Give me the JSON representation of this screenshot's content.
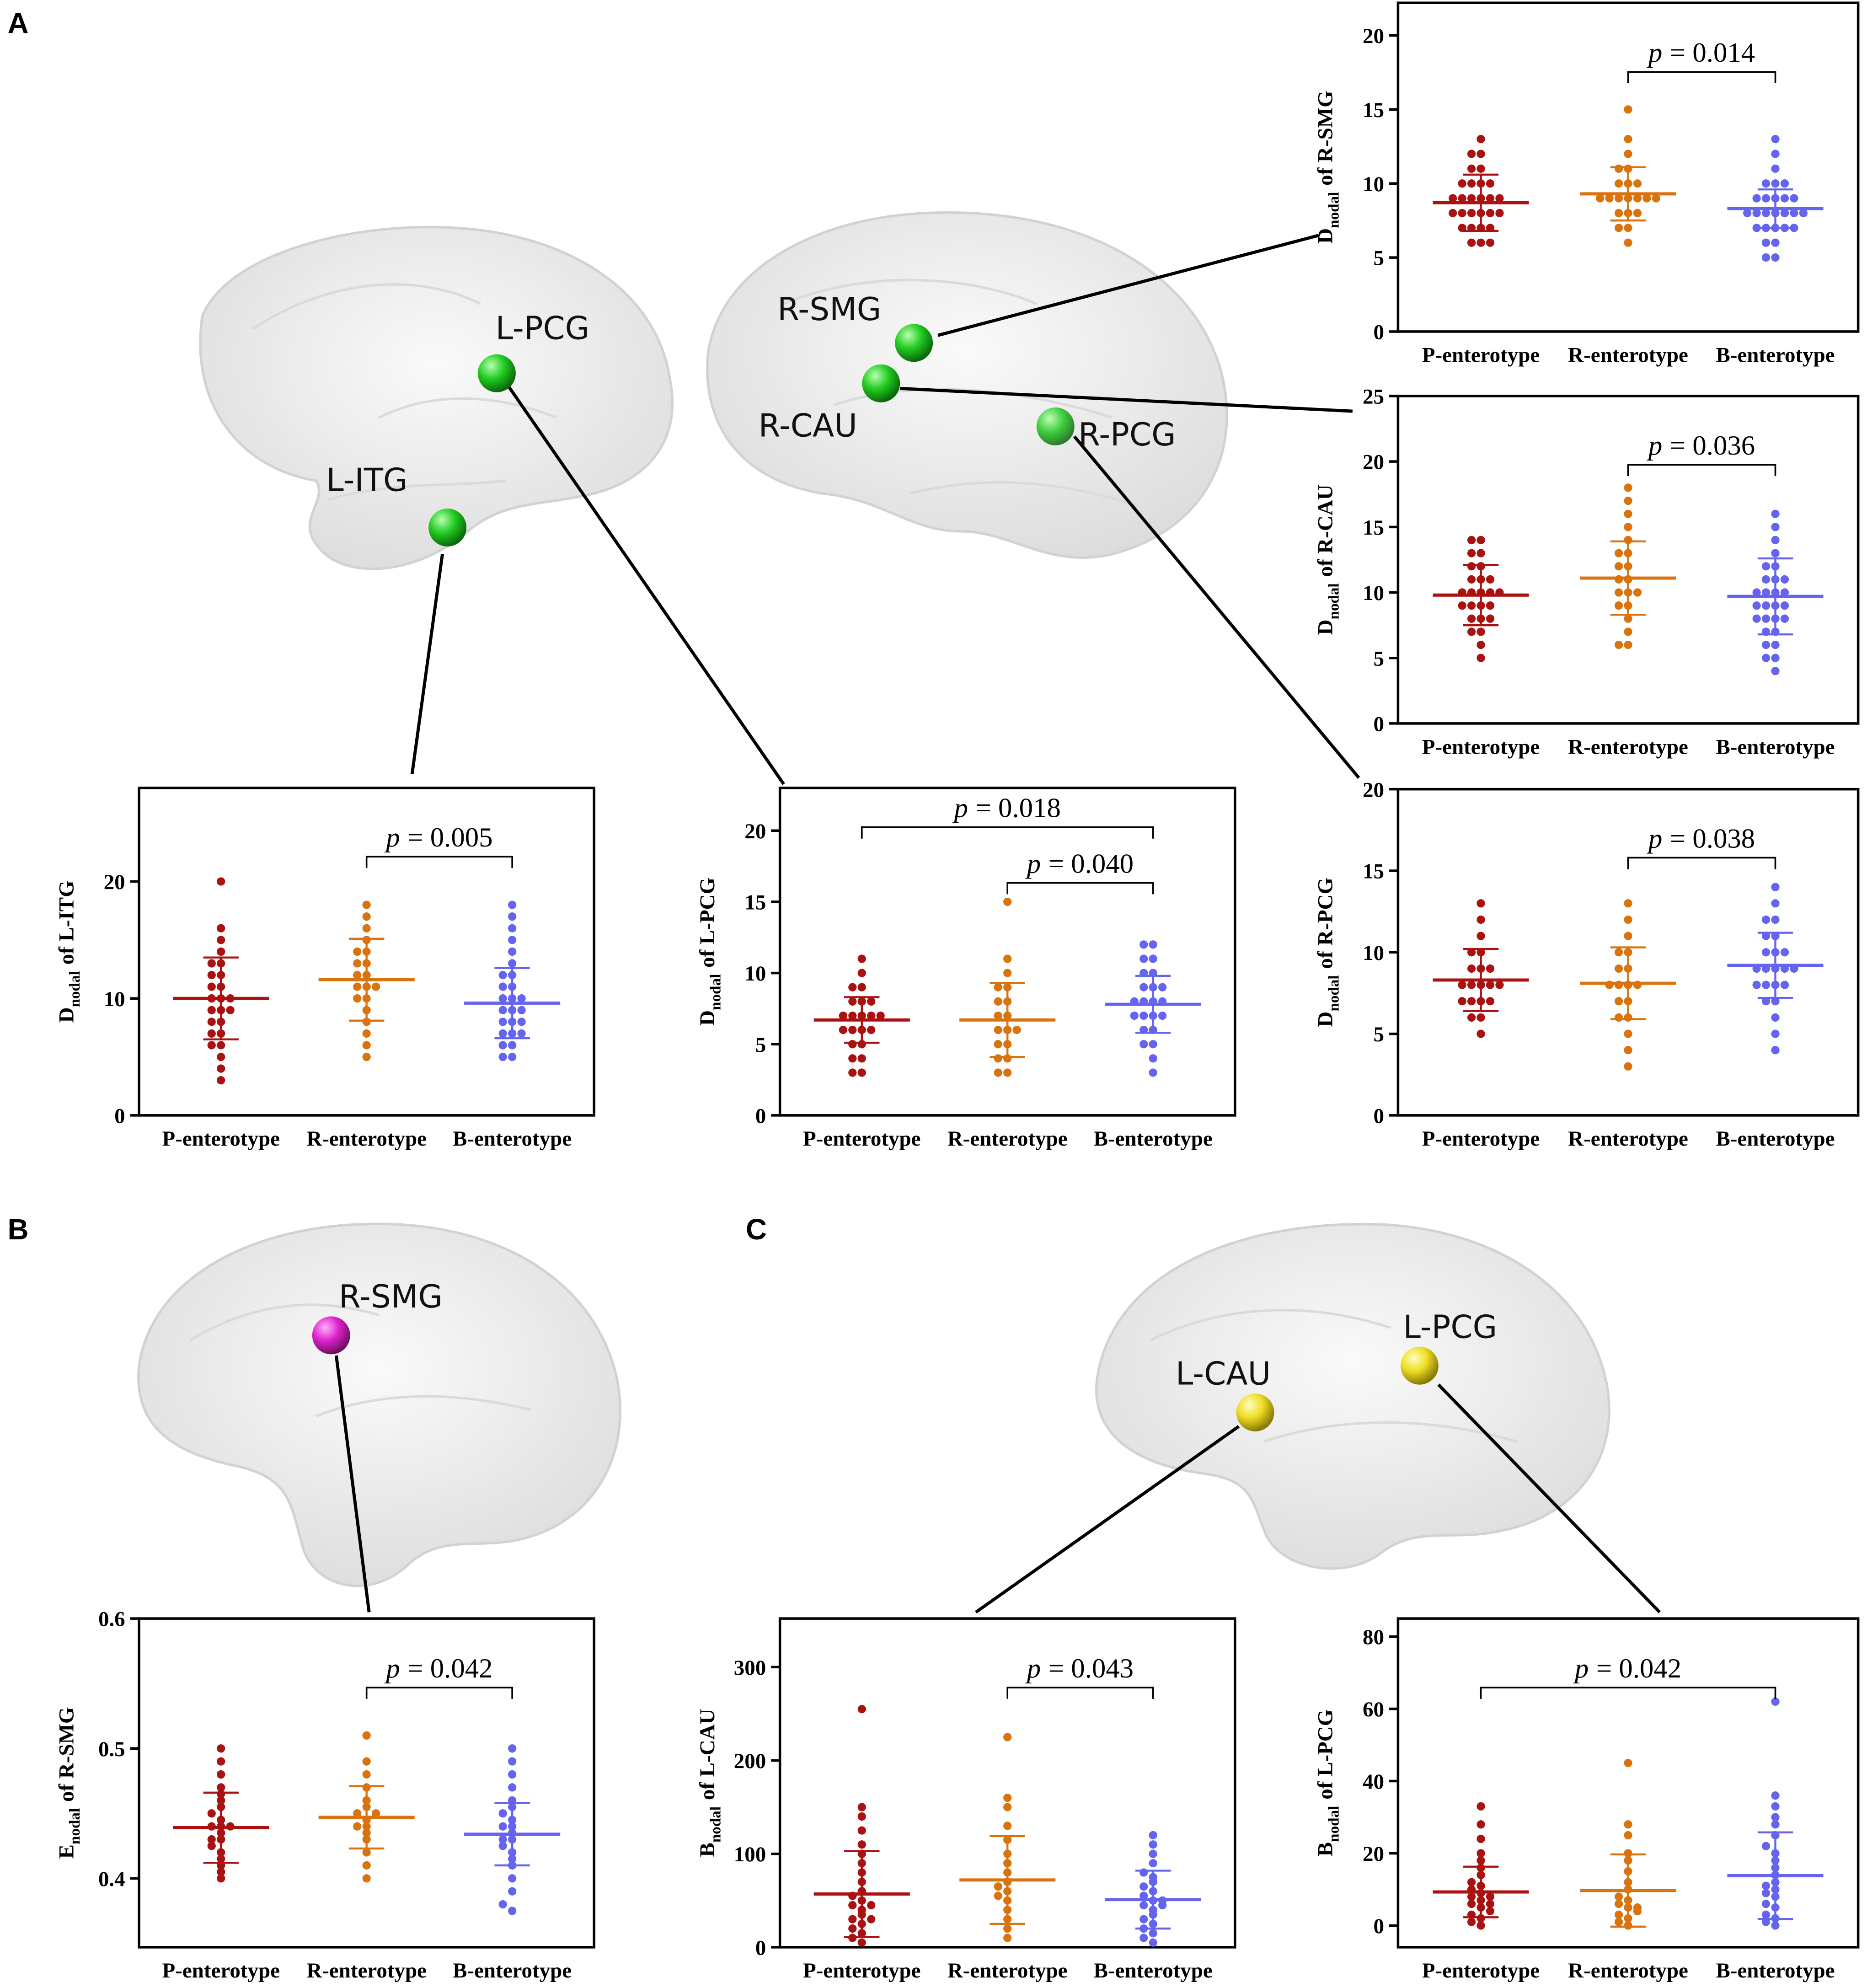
{
  "panel_labels": [
    "A",
    "B",
    "C"
  ],
  "brain_labels": {
    "a_left": [
      "L-PCG",
      "L-ITG"
    ],
    "a_right": [
      "R-SMG",
      "R-CAU",
      "R-PCG"
    ],
    "b": [
      "R-SMG"
    ],
    "c": [
      "L-CAU",
      "L-PCG"
    ]
  },
  "chart_data": [
    {
      "type": "dotplot",
      "ylabel": {
        "symbol": "D",
        "subscript": "nodal",
        "text": "of R-SMG"
      },
      "categories": [
        "P-enterotype",
        "R-enterotype",
        "B-enterotype"
      ],
      "ylim": [
        0,
        22.2
      ],
      "yticks": [
        0,
        5,
        10,
        15,
        20
      ],
      "groups": [
        {
          "color": "#aa1111",
          "mean": 8.7,
          "sd": 1.9,
          "values": [
            6,
            6,
            7,
            7,
            7,
            8,
            8,
            8,
            8,
            9,
            9,
            9,
            9,
            10,
            10,
            10,
            11,
            11,
            12,
            12,
            13,
            6,
            7,
            8,
            9,
            10,
            8,
            9
          ]
        },
        {
          "color": "#d9730d",
          "mean": 9.3,
          "sd": 1.8,
          "values": [
            6,
            7,
            7,
            8,
            8,
            9,
            9,
            9,
            9,
            9,
            9,
            10,
            10,
            10,
            11,
            11,
            12,
            13,
            15,
            8,
            9
          ]
        },
        {
          "color": "#6464ee",
          "mean": 8.3,
          "sd": 1.3,
          "values": [
            5,
            5,
            6,
            6,
            7,
            7,
            7,
            7,
            8,
            8,
            8,
            8,
            8,
            8,
            9,
            9,
            9,
            9,
            10,
            10,
            10,
            11,
            12,
            13,
            8,
            7,
            9
          ]
        }
      ],
      "brackets": [
        {
          "from": 1,
          "to": 2,
          "symbol": "p",
          "text": "= 0.014"
        }
      ]
    },
    {
      "type": "dotplot",
      "ylabel": {
        "symbol": "D",
        "subscript": "nodal",
        "text": "of R-CAU"
      },
      "categories": [
        "P-enterotype",
        "R-enterotype",
        "B-enterotype"
      ],
      "ylim": [
        0,
        25
      ],
      "yticks": [
        0,
        5,
        10,
        15,
        20,
        25
      ],
      "groups": [
        {
          "color": "#aa1111",
          "mean": 9.8,
          "sd": 2.3,
          "values": [
            5,
            6,
            7,
            7,
            8,
            8,
            9,
            9,
            9,
            10,
            10,
            10,
            10,
            11,
            11,
            11,
            12,
            12,
            13,
            13,
            14,
            14,
            8,
            9,
            10
          ]
        },
        {
          "color": "#d9730d",
          "mean": 11.1,
          "sd": 2.8,
          "values": [
            6,
            6,
            7,
            8,
            9,
            9,
            10,
            10,
            11,
            11,
            12,
            12,
            13,
            13,
            14,
            15,
            16,
            17,
            18,
            10
          ]
        },
        {
          "color": "#6464ee",
          "mean": 9.7,
          "sd": 2.9,
          "values": [
            4,
            5,
            5,
            6,
            6,
            7,
            7,
            8,
            8,
            8,
            9,
            9,
            9,
            10,
            10,
            10,
            10,
            11,
            11,
            11,
            12,
            12,
            13,
            14,
            15,
            16,
            9,
            8
          ]
        }
      ],
      "brackets": [
        {
          "from": 1,
          "to": 2,
          "symbol": "p",
          "text": "= 0.036"
        }
      ]
    },
    {
      "type": "dotplot",
      "ylabel": {
        "symbol": "D",
        "subscript": "nodal",
        "text": "of R-PCG"
      },
      "categories": [
        "P-enterotype",
        "R-enterotype",
        "B-enterotype"
      ],
      "ylim": [
        0,
        20
      ],
      "yticks": [
        0,
        5,
        10,
        15,
        20
      ],
      "groups": [
        {
          "color": "#aa1111",
          "mean": 8.3,
          "sd": 1.9,
          "values": [
            5,
            6,
            6,
            7,
            7,
            7,
            8,
            8,
            8,
            8,
            9,
            9,
            9,
            10,
            10,
            11,
            12,
            13,
            8,
            7
          ]
        },
        {
          "color": "#d9730d",
          "mean": 8.1,
          "sd": 2.2,
          "values": [
            3,
            4,
            5,
            6,
            6,
            7,
            7,
            8,
            8,
            8,
            9,
            9,
            10,
            10,
            11,
            12,
            13,
            8
          ]
        },
        {
          "color": "#6464ee",
          "mean": 9.2,
          "sd": 2.0,
          "values": [
            4,
            5,
            6,
            7,
            7,
            8,
            8,
            8,
            9,
            9,
            9,
            9,
            10,
            10,
            10,
            11,
            11,
            12,
            12,
            13,
            14,
            9,
            8
          ]
        }
      ],
      "brackets": [
        {
          "from": 1,
          "to": 2,
          "symbol": "p",
          "text": "= 0.038"
        }
      ]
    },
    {
      "type": "dotplot",
      "ylabel": {
        "symbol": "D",
        "subscript": "nodal",
        "text": "of L-ITG"
      },
      "categories": [
        "P-enterotype",
        "R-enterotype",
        "B-enterotype"
      ],
      "ylim": [
        0,
        28
      ],
      "yticks": [
        0,
        10,
        20
      ],
      "groups": [
        {
          "color": "#aa1111",
          "mean": 10.0,
          "sd": 3.5,
          "values": [
            3,
            4,
            5,
            6,
            6,
            7,
            7,
            8,
            8,
            9,
            9,
            10,
            10,
            11,
            11,
            12,
            12,
            13,
            13,
            14,
            15,
            16,
            20,
            10,
            9
          ]
        },
        {
          "color": "#d9730d",
          "mean": 11.6,
          "sd": 3.5,
          "values": [
            5,
            6,
            7,
            8,
            9,
            10,
            10,
            11,
            11,
            12,
            12,
            13,
            13,
            14,
            14,
            15,
            16,
            17,
            18,
            11
          ]
        },
        {
          "color": "#6464ee",
          "mean": 9.6,
          "sd": 3.0,
          "values": [
            5,
            5,
            6,
            6,
            7,
            7,
            7,
            8,
            8,
            9,
            9,
            9,
            10,
            10,
            10,
            11,
            11,
            12,
            12,
            13,
            14,
            15,
            16,
            17,
            18,
            8
          ]
        }
      ],
      "brackets": [
        {
          "from": 1,
          "to": 2,
          "symbol": "p",
          "text": "= 0.005"
        }
      ]
    },
    {
      "type": "dotplot",
      "ylabel": {
        "symbol": "D",
        "subscript": "nodal",
        "text": "of L-PCG"
      },
      "categories": [
        "P-enterotype",
        "R-enterotype",
        "B-enterotype"
      ],
      "ylim": [
        0,
        23
      ],
      "yticks": [
        0,
        5,
        10,
        15,
        20
      ],
      "groups": [
        {
          "color": "#aa1111",
          "mean": 6.7,
          "sd": 1.6,
          "values": [
            3,
            3,
            4,
            4,
            5,
            5,
            6,
            6,
            6,
            7,
            7,
            7,
            7,
            8,
            8,
            8,
            9,
            9,
            10,
            11,
            6,
            7
          ]
        },
        {
          "color": "#d9730d",
          "mean": 6.7,
          "sd": 2.6,
          "values": [
            3,
            3,
            4,
            4,
            5,
            5,
            6,
            6,
            7,
            7,
            8,
            8,
            9,
            9,
            10,
            11,
            15,
            6
          ]
        },
        {
          "color": "#6464ee",
          "mean": 7.8,
          "sd": 2.0,
          "values": [
            3,
            4,
            5,
            5,
            6,
            6,
            7,
            7,
            7,
            8,
            8,
            8,
            8,
            9,
            9,
            9,
            10,
            10,
            11,
            11,
            12,
            12,
            7
          ]
        }
      ],
      "brackets": [
        {
          "from": 0,
          "to": 2,
          "symbol": "p",
          "text": "= 0.018"
        },
        {
          "from": 1,
          "to": 2,
          "symbol": "p",
          "text": "= 0.040"
        }
      ]
    },
    {
      "type": "dotplot",
      "ylabel": {
        "symbol": "E",
        "subscript": "nodal",
        "text": "of R-SMG"
      },
      "categories": [
        "P-enterotype",
        "R-enterotype",
        "B-enterotype"
      ],
      "ylim": [
        0.347,
        0.6
      ],
      "yticks": [
        0.4,
        0.5,
        0.6
      ],
      "groups": [
        {
          "color": "#aa1111",
          "mean": 0.439,
          "sd": 0.027,
          "values": [
            0.4,
            0.405,
            0.41,
            0.415,
            0.42,
            0.425,
            0.43,
            0.435,
            0.44,
            0.44,
            0.445,
            0.45,
            0.455,
            0.46,
            0.465,
            0.47,
            0.48,
            0.49,
            0.5,
            0.43,
            0.44
          ]
        },
        {
          "color": "#d9730d",
          "mean": 0.447,
          "sd": 0.024,
          "values": [
            0.4,
            0.41,
            0.42,
            0.43,
            0.435,
            0.44,
            0.445,
            0.45,
            0.45,
            0.455,
            0.46,
            0.47,
            0.48,
            0.49,
            0.51,
            0.44
          ]
        },
        {
          "color": "#6464ee",
          "mean": 0.434,
          "sd": 0.024,
          "values": [
            0.375,
            0.38,
            0.39,
            0.4,
            0.41,
            0.415,
            0.42,
            0.425,
            0.43,
            0.435,
            0.44,
            0.44,
            0.445,
            0.45,
            0.455,
            0.46,
            0.47,
            0.48,
            0.49,
            0.5,
            0.43
          ]
        }
      ],
      "brackets": [
        {
          "from": 1,
          "to": 2,
          "symbol": "p",
          "text": "= 0.042"
        }
      ]
    },
    {
      "type": "dotplot",
      "ylabel": {
        "symbol": "B",
        "subscript": "nodal",
        "text": "of L-CAU"
      },
      "categories": [
        "P-enterotype",
        "R-enterotype",
        "B-enterotype"
      ],
      "ylim": [
        0,
        352
      ],
      "yticks": [
        0,
        100,
        200,
        300
      ],
      "groups": [
        {
          "color": "#aa1111",
          "mean": 57,
          "sd": 46,
          "values": [
            5,
            10,
            15,
            20,
            25,
            30,
            35,
            40,
            45,
            50,
            55,
            60,
            70,
            80,
            90,
            100,
            110,
            125,
            140,
            150,
            255,
            30,
            45
          ]
        },
        {
          "color": "#d9730d",
          "mean": 72,
          "sd": 47,
          "values": [
            10,
            20,
            30,
            40,
            50,
            60,
            65,
            70,
            80,
            90,
            100,
            115,
            130,
            150,
            160,
            225,
            55
          ]
        },
        {
          "color": "#6464ee",
          "mean": 51,
          "sd": 31,
          "values": [
            5,
            10,
            15,
            20,
            25,
            30,
            35,
            40,
            45,
            50,
            55,
            60,
            65,
            70,
            75,
            80,
            90,
            100,
            110,
            120,
            45,
            50
          ]
        }
      ],
      "brackets": [
        {
          "from": 1,
          "to": 2,
          "symbol": "p",
          "text": "= 0.043"
        }
      ]
    },
    {
      "type": "dotplot",
      "ylabel": {
        "symbol": "B",
        "subscript": "nodal",
        "text": "of L-PCG"
      },
      "categories": [
        "P-enterotype",
        "R-enterotype",
        "B-enterotype"
      ],
      "ylim": [
        -6,
        85
      ],
      "yticks": [
        0,
        20,
        40,
        60,
        80
      ],
      "groups": [
        {
          "color": "#aa1111",
          "mean": 9.3,
          "sd": 7,
          "values": [
            0,
            1,
            2,
            3,
            4,
            5,
            6,
            7,
            8,
            9,
            10,
            11,
            12,
            14,
            16,
            18,
            20,
            24,
            28,
            33,
            8,
            6
          ]
        },
        {
          "color": "#d9730d",
          "mean": 9.7,
          "sd": 10,
          "values": [
            0,
            1,
            2,
            3,
            4,
            5,
            6,
            7,
            8,
            10,
            12,
            15,
            18,
            20,
            25,
            28,
            45,
            5
          ]
        },
        {
          "color": "#6464ee",
          "mean": 13.8,
          "sd": 12,
          "values": [
            0,
            1,
            2,
            3,
            5,
            6,
            8,
            10,
            12,
            14,
            16,
            18,
            20,
            22,
            25,
            28,
            30,
            33,
            36,
            62,
            9,
            11
          ]
        }
      ],
      "brackets": [
        {
          "from": 0,
          "to": 2,
          "symbol": "p",
          "text": "= 0.042"
        }
      ]
    }
  ]
}
